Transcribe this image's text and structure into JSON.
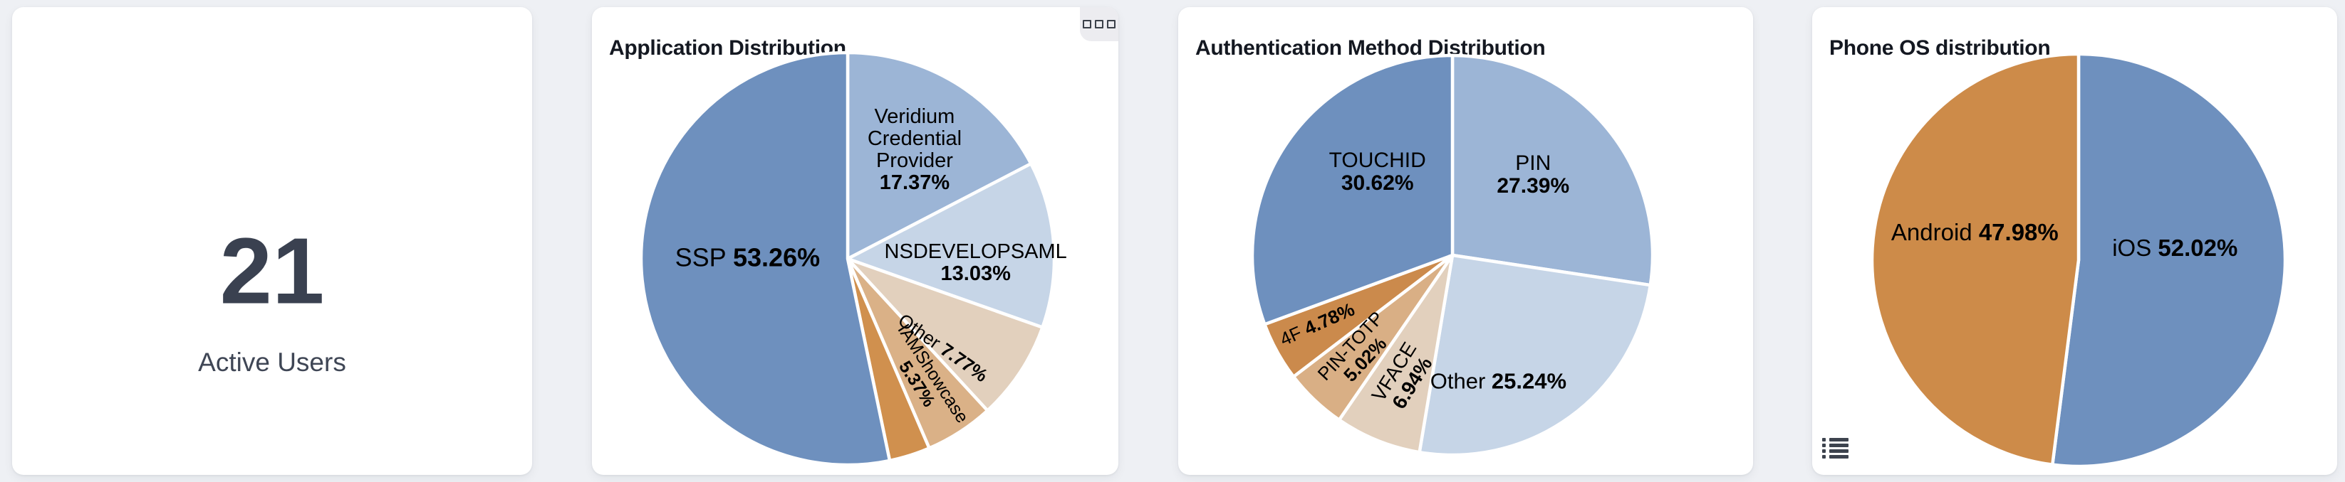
{
  "page": {
    "background": "#eef0f4",
    "card_background": "#ffffff"
  },
  "cards": [
    {
      "id": "active-users",
      "metric": {
        "value": "21",
        "label": "Active Users"
      }
    },
    {
      "id": "application-distribution",
      "title": "Application Distribution",
      "has_menu_button": true,
      "menu_icon": "three-squares-icon"
    },
    {
      "id": "authentication-method-distribution",
      "title": "Authentication Method Distribution"
    },
    {
      "id": "phone-os-distribution",
      "title": "Phone OS distribution",
      "has_legend_button": true,
      "legend_icon": "list-icon"
    }
  ],
  "chart_data": [
    {
      "type": "pie",
      "title": "Application Distribution",
      "legend_position": "none",
      "start_angle_deg": 0,
      "clockwise": true,
      "layout": {
        "center": [
          359,
          354
        ],
        "radius": 290,
        "slice_border": "#ffffff"
      },
      "slices": [
        {
          "name": "Veridium Credential Provider",
          "value": 17.37,
          "color": "#9cb5d6",
          "label": {
            "angle": 31.5,
            "rf": 0.62,
            "rotate": 0,
            "size": 29,
            "lines": [
              [
                {
                  "t": "Veridium"
                }
              ],
              [
                {
                  "t": "Credential"
                }
              ],
              [
                {
                  "t": "Provider"
                }
              ],
              [
                {
                  "t": "17.37%",
                  "b": true
                }
              ]
            ]
          }
        },
        {
          "name": "NSDEVELOPSAML",
          "value": 13.03,
          "color": "#c6d5e7",
          "label": {
            "angle": 92,
            "rf": 0.62,
            "rotate": 0,
            "size": 29,
            "lines": [
              [
                {
                  "t": "NSDEVELOPSAML"
                }
              ],
              [
                {
                  "t": "13.03%",
                  "b": true
                }
              ]
            ]
          }
        },
        {
          "name": "Other",
          "value": 7.77,
          "color": "#e2d0bd",
          "label": {
            "angle": 133,
            "rf": 0.63,
            "rotate": 35,
            "size": 26,
            "lines": [
              [
                {
                  "t": "Other "
                },
                {
                  "t": "7.77%",
                  "b": true
                }
              ]
            ]
          }
        },
        {
          "name": "IAMShowcase",
          "value": 5.37,
          "color": "#dab187",
          "label": {
            "angle": 147.5,
            "rf": 0.69,
            "rotate": 57,
            "size": 25,
            "lines": [
              [
                {
                  "t": "IAMShowcase"
                }
              ],
              [
                {
                  "t": "5.37%",
                  "b": true
                }
              ]
            ]
          }
        },
        {
          "name": null,
          "value": 3.2,
          "color": "#d0904e",
          "label": null
        },
        {
          "name": "SSP",
          "value": 53.26,
          "color": "#6e90be",
          "label": {
            "angle": 271,
            "rf": 0.485,
            "rotate": 0,
            "size": 36,
            "lines": [
              [
                {
                  "t": "SSP "
                },
                {
                  "t": "53.26%",
                  "b": true
                }
              ]
            ]
          }
        }
      ]
    },
    {
      "type": "pie",
      "title": "Authentication Method Distribution",
      "legend_position": "none",
      "start_angle_deg": 0,
      "clockwise": true,
      "layout": {
        "center": [
          385,
          349
        ],
        "radius": 281,
        "slice_border": "#ffffff"
      },
      "slices": [
        {
          "name": "PIN",
          "value": 27.39,
          "color": "#9cb5d6",
          "label": {
            "angle": 45,
            "rf": 0.57,
            "rotate": 0,
            "size": 30,
            "lines": [
              [
                {
                  "t": "PIN"
                }
              ],
              [
                {
                  "t": "27.39%",
                  "b": true
                }
              ]
            ]
          }
        },
        {
          "name": "Other",
          "value": 25.24,
          "color": "#c6d5e7",
          "label": {
            "angle": 160,
            "rf": 0.67,
            "rotate": 0,
            "size": 31,
            "lines": [
              [
                {
                  "t": "Other "
                },
                {
                  "t": "25.24%",
                  "b": true
                }
              ]
            ]
          }
        },
        {
          "name": "VFACE",
          "value": 6.94,
          "color": "#e2d0bd",
          "label": {
            "angle": 202,
            "rf": 0.66,
            "rotate": -58,
            "size": 28,
            "lines": [
              [
                {
                  "t": "VFACE"
                }
              ],
              [
                {
                  "t": "6.94%",
                  "b": true
                }
              ]
            ]
          }
        },
        {
          "name": "PIN-TOTP",
          "value": 5.02,
          "color": "#d9af85",
          "label": {
            "angle": 224,
            "rf": 0.68,
            "rotate": -47,
            "size": 26,
            "lines": [
              [
                {
                  "t": "PIN-TOTP"
                }
              ],
              [
                {
                  "t": "5.02%",
                  "b": true
                }
              ]
            ]
          }
        },
        {
          "name": "4F",
          "value": 4.78,
          "color": "#cb8a4c",
          "label": {
            "angle": 243,
            "rf": 0.76,
            "rotate": -24,
            "size": 26,
            "lines": [
              [
                {
                  "t": "4F "
                },
                {
                  "t": "4.78%",
                  "b": true
                }
              ]
            ]
          }
        },
        {
          "name": "TOUCHID",
          "value": 30.62,
          "color": "#6e90be",
          "label": {
            "angle": 318,
            "rf": 0.56,
            "rotate": 0,
            "size": 30,
            "lines": [
              [
                {
                  "t": "TOUCHID"
                }
              ],
              [
                {
                  "t": "30.62%",
                  "b": true
                }
              ]
            ]
          }
        }
      ]
    },
    {
      "type": "pie",
      "title": "Phone OS distribution",
      "legend_position": "none",
      "start_angle_deg": 0,
      "clockwise": true,
      "layout": {
        "center": [
          374,
          356
        ],
        "radius": 290,
        "slice_border": "#ffffff"
      },
      "slices": [
        {
          "name": "iOS",
          "value": 52.02,
          "color": "#6e90be",
          "label": {
            "angle": 83,
            "rf": 0.47,
            "rotate": 0,
            "size": 33,
            "lines": [
              [
                {
                  "t": "iOS "
                },
                {
                  "t": "52.02%",
                  "b": true
                }
              ]
            ]
          }
        },
        {
          "name": "Android",
          "value": 47.98,
          "color": "#cd8b49",
          "label": {
            "angle": 285,
            "rf": 0.52,
            "rotate": 0,
            "size": 33,
            "lines": [
              [
                {
                  "t": "Android "
                },
                {
                  "t": "47.98%",
                  "b": true
                }
              ]
            ]
          }
        }
      ]
    }
  ]
}
